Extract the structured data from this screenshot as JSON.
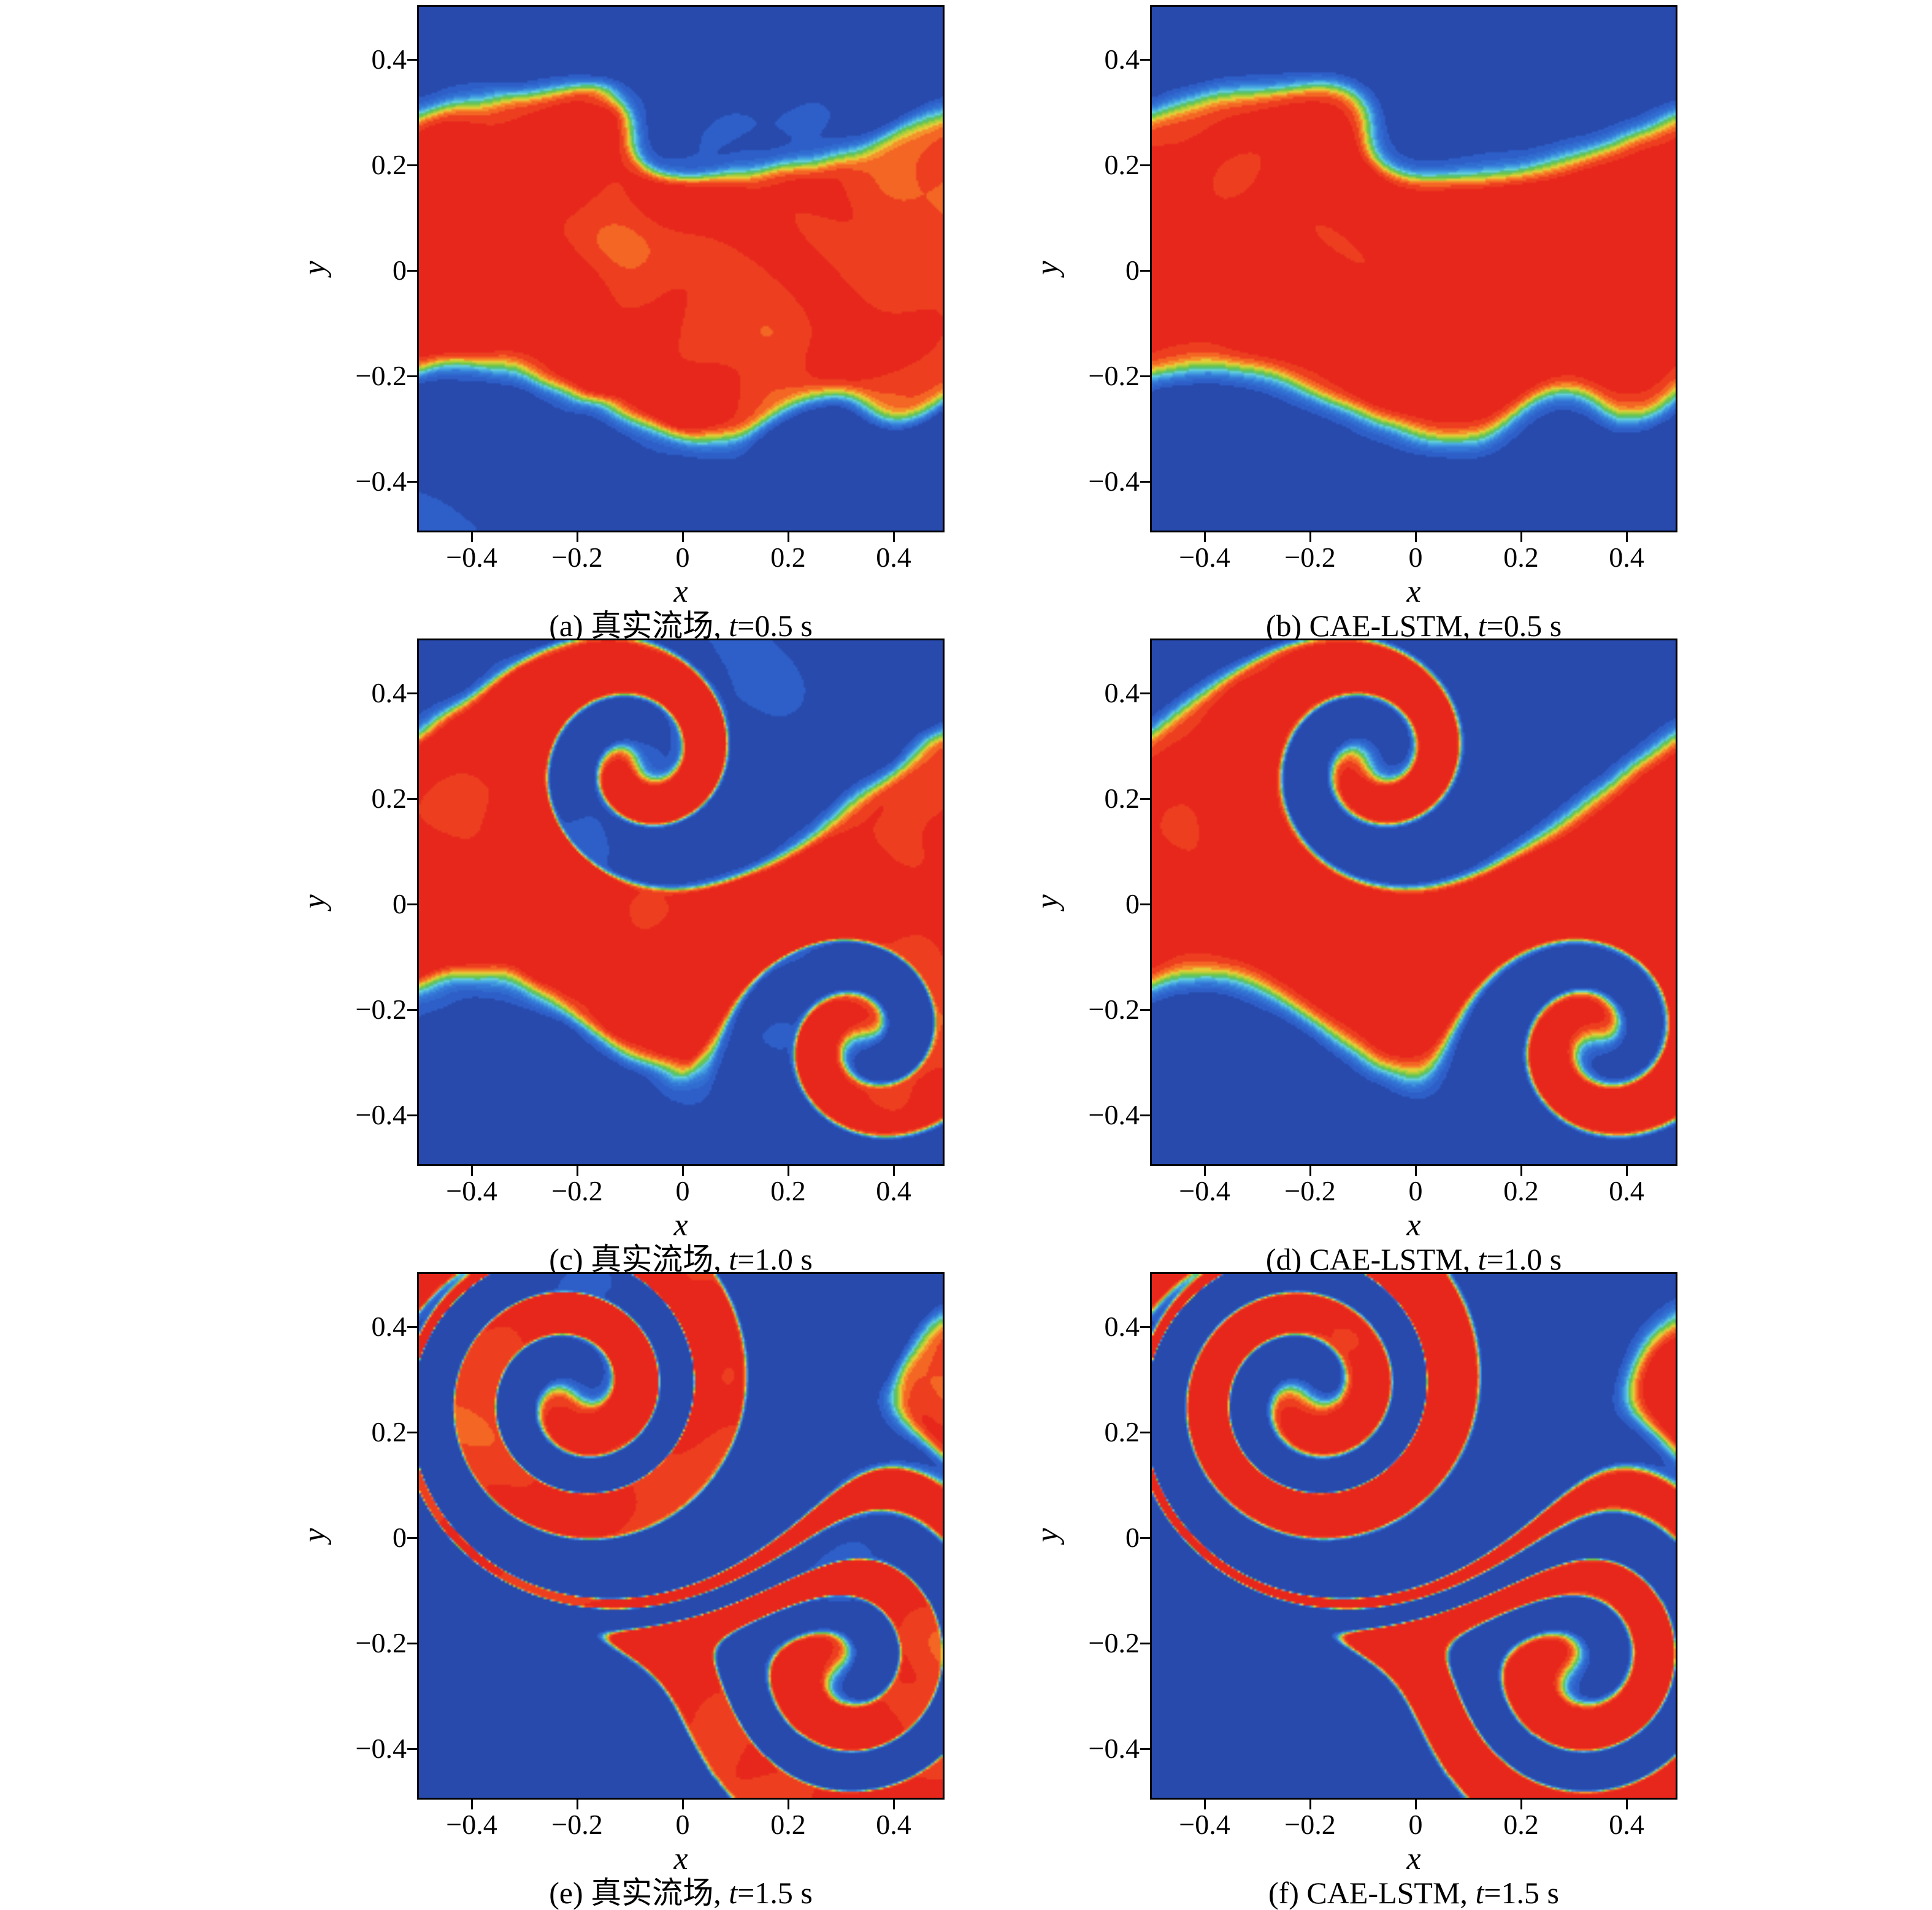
{
  "chart_data": {
    "type": "heatmap",
    "subtype": "filled-contour-flow-field-comparison",
    "title": "",
    "layout": {
      "rows": 3,
      "cols": 2,
      "grid": false,
      "legend": false,
      "colorbar": false
    },
    "axes": {
      "x": {
        "label": "x",
        "range": [
          -0.5,
          0.5
        ],
        "ticks": [
          {
            "v": -0.4,
            "label": "−0.4"
          },
          {
            "v": -0.2,
            "label": "−0.2"
          },
          {
            "v": 0,
            "label": "0"
          },
          {
            "v": 0.2,
            "label": "0.2"
          },
          {
            "v": 0.4,
            "label": "0.4"
          }
        ]
      },
      "y": {
        "label": "y",
        "range": [
          -0.5,
          0.5
        ],
        "ticks": [
          {
            "v": -0.4,
            "label": "−0.4"
          },
          {
            "v": -0.2,
            "label": "−0.2"
          },
          {
            "v": 0,
            "label": "0"
          },
          {
            "v": 0.2,
            "label": "0.2"
          },
          {
            "v": 0.4,
            "label": "0.4"
          }
        ]
      }
    },
    "colormap": {
      "description": "jet-like: blue shear-free regions, thin cyan/green/orange transition layers, red central jet",
      "stops": [
        {
          "p": 0.0,
          "rgb": [
            36,
            64,
            158
          ]
        },
        {
          "p": 0.1,
          "rgb": [
            46,
            95,
            200
          ]
        },
        {
          "p": 0.24,
          "rgb": [
            52,
            122,
            216
          ]
        },
        {
          "p": 0.36,
          "rgb": [
            72,
            172,
            226
          ]
        },
        {
          "p": 0.45,
          "rgb": [
            108,
            214,
            212
          ]
        },
        {
          "p": 0.52,
          "rgb": [
            74,
            186,
            96
          ]
        },
        {
          "p": 0.61,
          "rgb": [
            146,
            206,
            62
          ]
        },
        {
          "p": 0.69,
          "rgb": [
            226,
            212,
            58
          ]
        },
        {
          "p": 0.77,
          "rgb": [
            246,
            142,
            42
          ]
        },
        {
          "p": 0.85,
          "rgb": [
            243,
            92,
            35
          ]
        },
        {
          "p": 0.93,
          "rgb": [
            233,
            46,
            30
          ]
        },
        {
          "p": 1.0,
          "rgb": [
            229,
            33,
            27
          ]
        }
      ]
    },
    "band": {
      "half_width": 0.26
    },
    "panels": [
      {
        "id": "a",
        "model": "真实流场",
        "time_s": 0.5,
        "caption": {
          "prefix": "(a) 真实流场, ",
          "t": "t",
          "suffix": "=0.5 s"
        },
        "field": {
          "amp": 0.07,
          "cu": -0.08,
          "cl": 0.35,
          "delta": 0.022,
          "noise": 0.13,
          "wiggle": 0.013,
          "seed": 3.1,
          "vortices": [
            {
              "x": -0.08,
              "y": 0.27,
              "r": 0.13,
              "A": 1.0
            },
            {
              "x": 0.35,
              "y": -0.27,
              "r": 0.13,
              "A": 1.0
            }
          ]
        }
      },
      {
        "id": "b",
        "model": "CAE-LSTM",
        "time_s": 0.5,
        "caption": {
          "prefix": "(b) CAE-LSTM, ",
          "t": "t",
          "suffix": "=0.5 s"
        },
        "field": {
          "amp": 0.07,
          "cu": -0.08,
          "cl": 0.35,
          "delta": 0.026,
          "noise": 0.05,
          "wiggle": 0.006,
          "seed": 7.4,
          "vortices": [
            {
              "x": -0.08,
              "y": 0.27,
              "r": 0.13,
              "A": 1.0
            },
            {
              "x": 0.35,
              "y": -0.27,
              "r": 0.13,
              "A": 1.0
            }
          ]
        }
      },
      {
        "id": "c",
        "model": "真实流场",
        "time_s": 1.0,
        "caption": {
          "prefix": "(c) 真实流场, ",
          "t": "t",
          "suffix": "=1.0 s"
        },
        "field": {
          "amp": 0.12,
          "cu": -0.08,
          "cl": 0.35,
          "delta": 0.022,
          "noise": 0.12,
          "wiggle": 0.013,
          "seed": 1.9,
          "vortices": [
            {
              "x": -0.08,
              "y": 0.27,
              "r": 0.17,
              "A": 6.8
            },
            {
              "x": 0.35,
              "y": -0.26,
              "r": 0.17,
              "A": 6.8
            }
          ]
        }
      },
      {
        "id": "d",
        "model": "CAE-LSTM",
        "time_s": 1.0,
        "caption": {
          "prefix": "(d) CAE-LSTM, ",
          "t": "t",
          "suffix": "=1.0 s"
        },
        "field": {
          "amp": 0.12,
          "cu": -0.08,
          "cl": 0.35,
          "delta": 0.026,
          "noise": 0.05,
          "wiggle": 0.006,
          "seed": 9.2,
          "vortices": [
            {
              "x": -0.08,
              "y": 0.27,
              "r": 0.17,
              "A": 6.8
            },
            {
              "x": 0.35,
              "y": -0.26,
              "r": 0.17,
              "A": 6.8
            }
          ]
        }
      },
      {
        "id": "e",
        "model": "真实流场",
        "time_s": 1.5,
        "caption": {
          "prefix": "(e) 真实流场, ",
          "t": "t",
          "suffix": "=1.5 s"
        },
        "field": {
          "amp": 0.17,
          "cu": -0.2,
          "cl": 0.3,
          "delta": 0.022,
          "noise": 0.12,
          "wiggle": 0.013,
          "seed": 5.3,
          "vortices": [
            {
              "x": -0.2,
              "y": 0.27,
              "r": 0.26,
              "A": 12.5
            },
            {
              "x": 0.3,
              "y": -0.25,
              "r": 0.26,
              "A": 12.5
            }
          ]
        }
      },
      {
        "id": "f",
        "model": "CAE-LSTM",
        "time_s": 1.5,
        "caption": {
          "prefix": "(f) CAE-LSTM, ",
          "t": "t",
          "suffix": "=1.5 s"
        },
        "field": {
          "amp": 0.17,
          "cu": -0.2,
          "cl": 0.3,
          "delta": 0.026,
          "noise": 0.05,
          "wiggle": 0.006,
          "seed": 11.7,
          "vortices": [
            {
              "x": -0.2,
              "y": 0.27,
              "r": 0.26,
              "A": 12.5
            },
            {
              "x": 0.3,
              "y": -0.25,
              "r": 0.26,
              "A": 12.5
            }
          ]
        }
      }
    ]
  }
}
